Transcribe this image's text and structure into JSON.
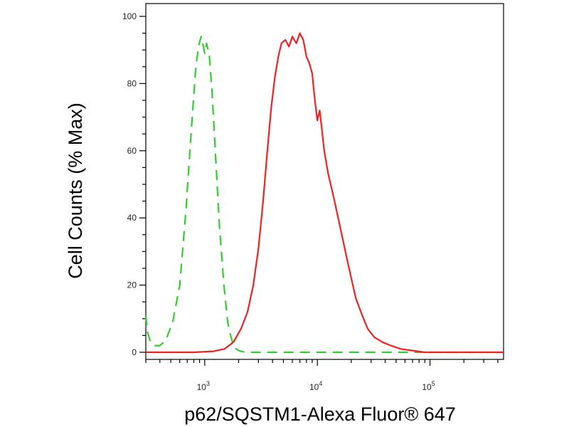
{
  "chart_data": {
    "type": "line",
    "title": "",
    "xlabel": "p62/SQSTM1-Alexa Fluor® 647",
    "ylabel": "Cell Counts (% Max)",
    "xscale": "log",
    "xlim": [
      300,
      450000
    ],
    "ylim": [
      0,
      104
    ],
    "yticks": [
      0,
      20,
      40,
      60,
      80,
      100
    ],
    "xticks": [
      {
        "value": 1000,
        "base": "10",
        "exp": "3"
      },
      {
        "value": 10000,
        "base": "10",
        "exp": "4"
      },
      {
        "value": 100000,
        "base": "10",
        "exp": "5"
      }
    ],
    "grid": false,
    "legend": "none",
    "series": [
      {
        "color": "#33cc33",
        "dash": true,
        "x": [
          300,
          310,
          330,
          360,
          400,
          450,
          520,
          600,
          680,
          760,
          830,
          880,
          930,
          960,
          1000,
          1040,
          1100,
          1160,
          1250,
          1350,
          1480,
          1600,
          1700,
          1800,
          1900,
          2000,
          2300,
          3000,
          5000,
          10000,
          30000,
          100000,
          450000
        ],
        "y": [
          11,
          6,
          3,
          2,
          2,
          3.5,
          9,
          20,
          42,
          66,
          84,
          91,
          94,
          92,
          89,
          92,
          88,
          78,
          58,
          38,
          20,
          9,
          5,
          2,
          1,
          0.5,
          0,
          0,
          0,
          0,
          0,
          0,
          0
        ]
      },
      {
        "color": "#ee2222",
        "dash": false,
        "x": [
          300,
          800,
          1200,
          1500,
          1800,
          2100,
          2400,
          2700,
          3000,
          3300,
          3600,
          3900,
          4200,
          4500,
          4800,
          5200,
          5600,
          6000,
          6500,
          7000,
          7500,
          8000,
          8500,
          9000,
          9500,
          10000,
          10500,
          11000,
          11500,
          12500,
          14000,
          16000,
          18000,
          20000,
          22000,
          25000,
          28000,
          32000,
          38000,
          45000,
          55000,
          70000,
          90000,
          120000,
          200000,
          450000
        ],
        "y": [
          0,
          0,
          0.3,
          1,
          3,
          7,
          12,
          20,
          31,
          45,
          60,
          73,
          82,
          88,
          92,
          93,
          91,
          94,
          92,
          95,
          93,
          88,
          86,
          83,
          75,
          69,
          72,
          66,
          60,
          53,
          46,
          37,
          29,
          22,
          16,
          11,
          7,
          4.5,
          3,
          2,
          1,
          0.5,
          0,
          0,
          0,
          0
        ]
      }
    ]
  }
}
